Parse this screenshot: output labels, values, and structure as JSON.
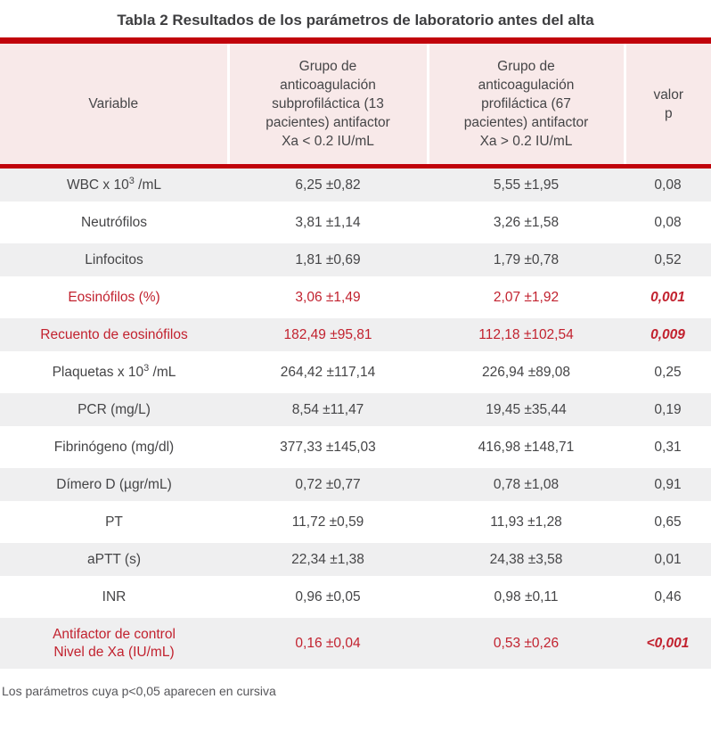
{
  "title": "Tabla 2 Resultados de los parámetros de laboratorio antes del alta",
  "footnote": "Los parámetros cuya p<0,05 aparecen en cursiva",
  "colors": {
    "accent_bar_red": "#c1020b",
    "significant_text_red": "#c2222f",
    "header_bg_pink": "#f8e9e9",
    "row_stripe_gray": "#efeff0",
    "body_text": "#454547"
  },
  "table": {
    "header": {
      "variable": "Variable",
      "group1": "Grupo de anticoagulación subprofiláctica (13 pacientes) antifactor Xa < 0.2 IU/mL",
      "group2": "Grupo de anticoagulación profiláctica (67 pacientes) antifactor Xa > 0.2 IU/mL",
      "p": "valor p"
    },
    "rows": [
      {
        "variable": "WBC x 10",
        "variable_sup": "3",
        "variable_rest": " /mL",
        "group1": "6,25 ±0,82",
        "group2": "5,55 ±1,95",
        "p": "0,08"
      },
      {
        "variable": "Neutrófilos",
        "group1": "3,81 ±1,14",
        "group2": "3,26 ±1,58",
        "p": "0,08"
      },
      {
        "variable": "Linfocitos",
        "group1": "1,81 ±0,69",
        "group2": "1,79 ±0,78",
        "p": "0,52"
      },
      {
        "variable": "Eosinófilos (%)",
        "group1": "3,06 ±1,49",
        "group2": "2,07 ±1,92",
        "p": "0,001",
        "significant": true
      },
      {
        "variable": "Recuento de eosinófilos",
        "group1": "182,49 ±95,81",
        "group2": "112,18 ±102,54",
        "p": "0,009",
        "significant": true
      },
      {
        "variable": "Plaquetas x 10",
        "variable_sup": "3",
        "variable_rest": " /mL",
        "group1": "264,42 ±117,14",
        "group2": "226,94 ±89,08",
        "p": "0,25"
      },
      {
        "variable": "PCR (mg/L)",
        "group1": "8,54 ±11,47",
        "group2": "19,45 ±35,44",
        "p": "0,19"
      },
      {
        "variable": "Fibrinógeno (mg/dl)",
        "group1": "377,33 ±145,03",
        "group2": "416,98 ±148,71",
        "p": "0,31"
      },
      {
        "variable": "Dímero D (µgr/mL)",
        "group1": "0,72 ±0,77",
        "group2": "0,78 ±1,08",
        "p": "0,91"
      },
      {
        "variable": "PT",
        "group1": "11,72 ±0,59",
        "group2": "11,93 ±1,28",
        "p": "0,65"
      },
      {
        "variable": "aPTT (s)",
        "group1": "22,34 ±1,38",
        "group2": "24,38 ±3,58",
        "p": "0,01"
      },
      {
        "variable": "INR",
        "group1": "0,96 ±0,05",
        "group2": "0,98 ±0,11",
        "p": "0,46"
      },
      {
        "variable": "Antifactor de control",
        "variable_line2": "Nivel de Xa (IU/mL)",
        "group1": "0,16 ±0,04",
        "group2": "0,53 ±0,26",
        "p": "<0,001",
        "significant": true
      }
    ]
  }
}
